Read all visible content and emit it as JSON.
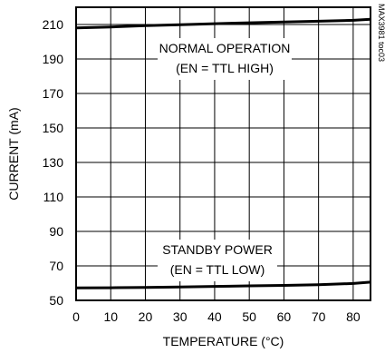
{
  "chart_data": {
    "type": "line",
    "title": "",
    "xlabel": "TEMPERATURE (°C)",
    "ylabel": "CURRENT (mA)",
    "xlim": [
      0,
      85
    ],
    "ylim": [
      50,
      220
    ],
    "xticks": [
      0,
      10,
      20,
      30,
      40,
      50,
      60,
      70,
      80
    ],
    "yticks": [
      50,
      70,
      90,
      110,
      130,
      150,
      170,
      190,
      210
    ],
    "grid": true,
    "series": [
      {
        "name": "NORMAL OPERATION",
        "x": [
          0,
          10,
          20,
          30,
          40,
          50,
          60,
          70,
          80,
          85
        ],
        "y": [
          208,
          208.6,
          209.3,
          209.9,
          210.5,
          211,
          211.5,
          211.9,
          212.4,
          213
        ]
      },
      {
        "name": "STANDBY POWER",
        "x": [
          0,
          10,
          20,
          30,
          40,
          50,
          60,
          70,
          80,
          85
        ],
        "y": [
          57.2,
          57.3,
          57.5,
          57.8,
          58.1,
          58.4,
          58.7,
          59.1,
          59.8,
          60.6
        ]
      }
    ],
    "annotations": [
      {
        "lines": [
          "NORMAL OPERATION",
          "(EN = TTL HIGH)"
        ]
      },
      {
        "lines": [
          "STANDBY POWER",
          "(EN = TTL LOW)"
        ]
      }
    ],
    "side_label": "MAX3981 toc03",
    "colors": {
      "line": "#000000",
      "grid": "#000000",
      "background": "#ffffff"
    }
  }
}
